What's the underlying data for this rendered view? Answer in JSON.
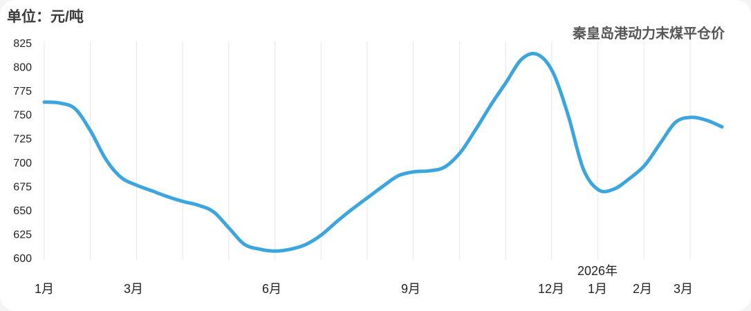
{
  "header": {
    "unit": "单位：元/吨",
    "title": "秦皇岛港动力末煤平仓价"
  },
  "chart_data": {
    "type": "line",
    "title": "秦皇岛港动力末煤平仓价",
    "unit": "单位：元/吨",
    "ylim": [
      600,
      825
    ],
    "yticks": [
      600,
      625,
      650,
      675,
      700,
      725,
      750,
      775,
      800,
      825
    ],
    "xtick_labels": [
      "1月",
      "3月",
      "6月",
      "9月",
      "12月",
      "1月",
      "2月",
      "3月"
    ],
    "year_label": "2026年",
    "grid": "vertical",
    "color": "#3ba5de",
    "series": [
      {
        "values": [
          763,
          762,
          756,
          733,
          703,
          684,
          676,
          670,
          664,
          659,
          655,
          648,
          631,
          614,
          609,
          607,
          609,
          614,
          624,
          638,
          651,
          663,
          675,
          686,
          690,
          691,
          695,
          710,
          734,
          760,
          784,
          808,
          813,
          795,
          750,
          693,
          671,
          672,
          683,
          697,
          720,
          742,
          747,
          744,
          737
        ]
      }
    ]
  }
}
